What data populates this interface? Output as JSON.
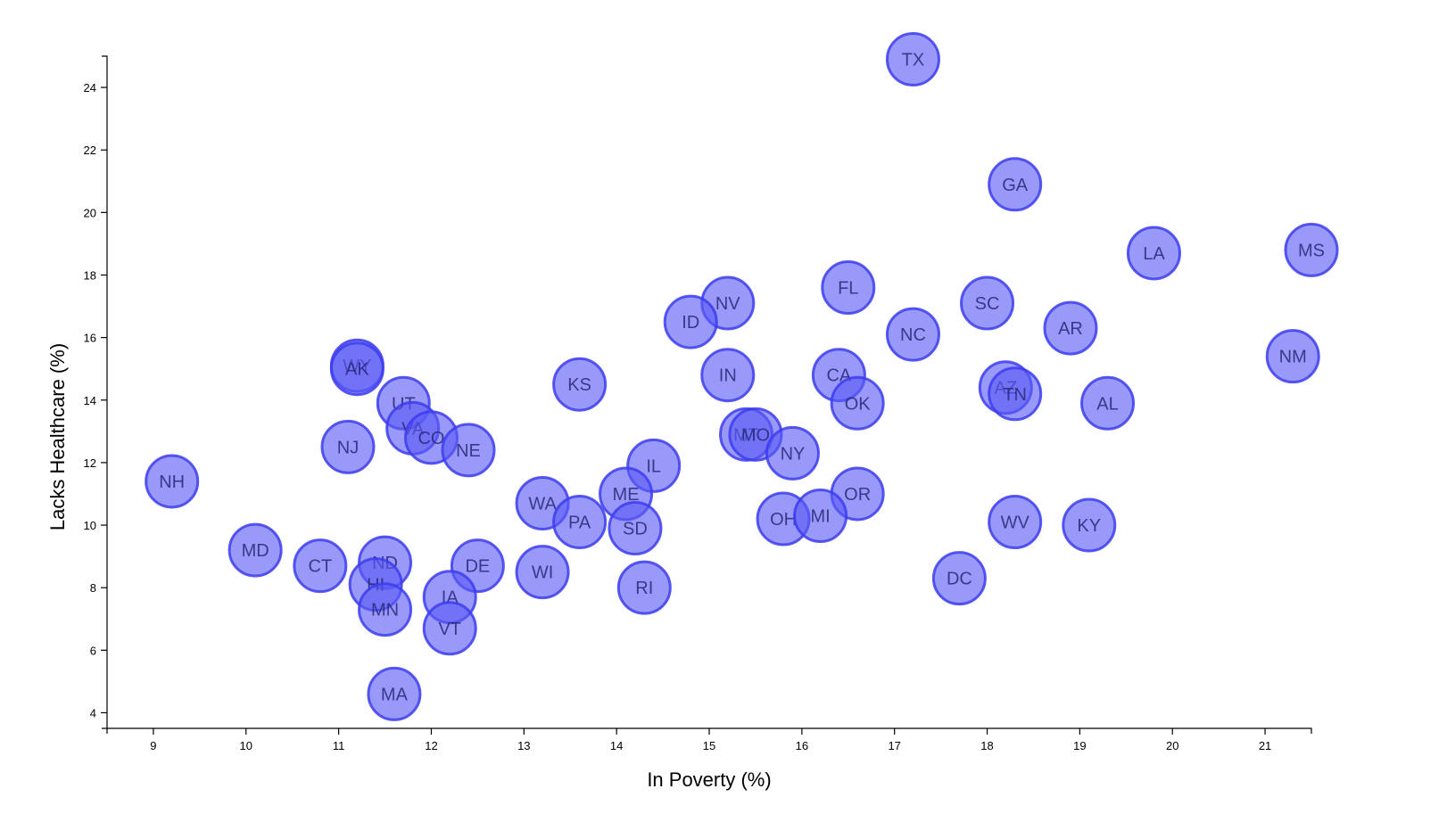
{
  "chart_data": {
    "type": "scatter",
    "title": "",
    "xlabel": "In Poverty (%)",
    "ylabel": "Lacks Healthcare (%)",
    "xlim": [
      8.5,
      21.5
    ],
    "ylim": [
      3.5,
      25.0
    ],
    "x_ticks": [
      9,
      10,
      11,
      12,
      13,
      14,
      15,
      16,
      17,
      18,
      19,
      20,
      21
    ],
    "y_ticks": [
      4,
      6,
      8,
      10,
      12,
      14,
      16,
      18,
      20,
      22,
      24
    ],
    "grid": false,
    "legend": "none",
    "colors": {
      "marker_fill": "#5a5af5",
      "marker_stroke": "#3c3cf0",
      "label": "#282878"
    },
    "points": [
      {
        "label": "TX",
        "x": 17.2,
        "y": 24.9
      },
      {
        "label": "GA",
        "x": 18.3,
        "y": 20.9
      },
      {
        "label": "LA",
        "x": 19.8,
        "y": 18.7
      },
      {
        "label": "MS",
        "x": 21.5,
        "y": 18.8
      },
      {
        "label": "FL",
        "x": 16.5,
        "y": 17.6
      },
      {
        "label": "SC",
        "x": 18.0,
        "y": 17.1
      },
      {
        "label": "NV",
        "x": 15.2,
        "y": 17.1
      },
      {
        "label": "ID",
        "x": 14.8,
        "y": 16.5
      },
      {
        "label": "NC",
        "x": 17.2,
        "y": 16.1
      },
      {
        "label": "AR",
        "x": 18.9,
        "y": 16.3
      },
      {
        "label": "NM",
        "x": 21.3,
        "y": 15.4
      },
      {
        "label": "WY",
        "x": 11.2,
        "y": 15.1
      },
      {
        "label": "AK",
        "x": 11.2,
        "y": 15.0
      },
      {
        "label": "KS",
        "x": 13.6,
        "y": 14.5
      },
      {
        "label": "IN",
        "x": 15.2,
        "y": 14.8
      },
      {
        "label": "CA",
        "x": 16.4,
        "y": 14.8
      },
      {
        "label": "OK",
        "x": 16.6,
        "y": 13.9
      },
      {
        "label": "AZ",
        "x": 18.2,
        "y": 14.4
      },
      {
        "label": "TN",
        "x": 18.3,
        "y": 14.2
      },
      {
        "label": "AL",
        "x": 19.3,
        "y": 13.9
      },
      {
        "label": "UT",
        "x": 11.7,
        "y": 13.9
      },
      {
        "label": "VA",
        "x": 11.8,
        "y": 13.1
      },
      {
        "label": "CO",
        "x": 12.0,
        "y": 12.8
      },
      {
        "label": "NE",
        "x": 12.4,
        "y": 12.4
      },
      {
        "label": "NJ",
        "x": 11.1,
        "y": 12.5
      },
      {
        "label": "NH",
        "x": 9.2,
        "y": 11.4
      },
      {
        "label": "MT",
        "x": 15.4,
        "y": 12.9
      },
      {
        "label": "MO",
        "x": 15.5,
        "y": 12.9
      },
      {
        "label": "NY",
        "x": 15.9,
        "y": 12.3
      },
      {
        "label": "IL",
        "x": 14.4,
        "y": 11.9
      },
      {
        "label": "ME",
        "x": 14.1,
        "y": 11.0
      },
      {
        "label": "OR",
        "x": 16.6,
        "y": 11.0
      },
      {
        "label": "WA",
        "x": 13.2,
        "y": 10.7
      },
      {
        "label": "PA",
        "x": 13.6,
        "y": 10.1
      },
      {
        "label": "SD",
        "x": 14.2,
        "y": 9.9
      },
      {
        "label": "OH",
        "x": 15.8,
        "y": 10.2
      },
      {
        "label": "MI",
        "x": 16.2,
        "y": 10.3
      },
      {
        "label": "WV",
        "x": 18.3,
        "y": 10.1
      },
      {
        "label": "KY",
        "x": 19.1,
        "y": 10.0
      },
      {
        "label": "MD",
        "x": 10.1,
        "y": 9.2
      },
      {
        "label": "CT",
        "x": 10.8,
        "y": 8.7
      },
      {
        "label": "ND",
        "x": 11.5,
        "y": 8.8
      },
      {
        "label": "DE",
        "x": 12.5,
        "y": 8.7
      },
      {
        "label": "WI",
        "x": 13.2,
        "y": 8.5
      },
      {
        "label": "HI",
        "x": 11.4,
        "y": 8.1
      },
      {
        "label": "DC",
        "x": 17.7,
        "y": 8.3
      },
      {
        "label": "RI",
        "x": 14.3,
        "y": 8.0
      },
      {
        "label": "IA",
        "x": 12.2,
        "y": 7.7
      },
      {
        "label": "MN",
        "x": 11.5,
        "y": 7.3
      },
      {
        "label": "VT",
        "x": 12.2,
        "y": 6.7
      },
      {
        "label": "MA",
        "x": 11.6,
        "y": 4.6
      }
    ]
  }
}
